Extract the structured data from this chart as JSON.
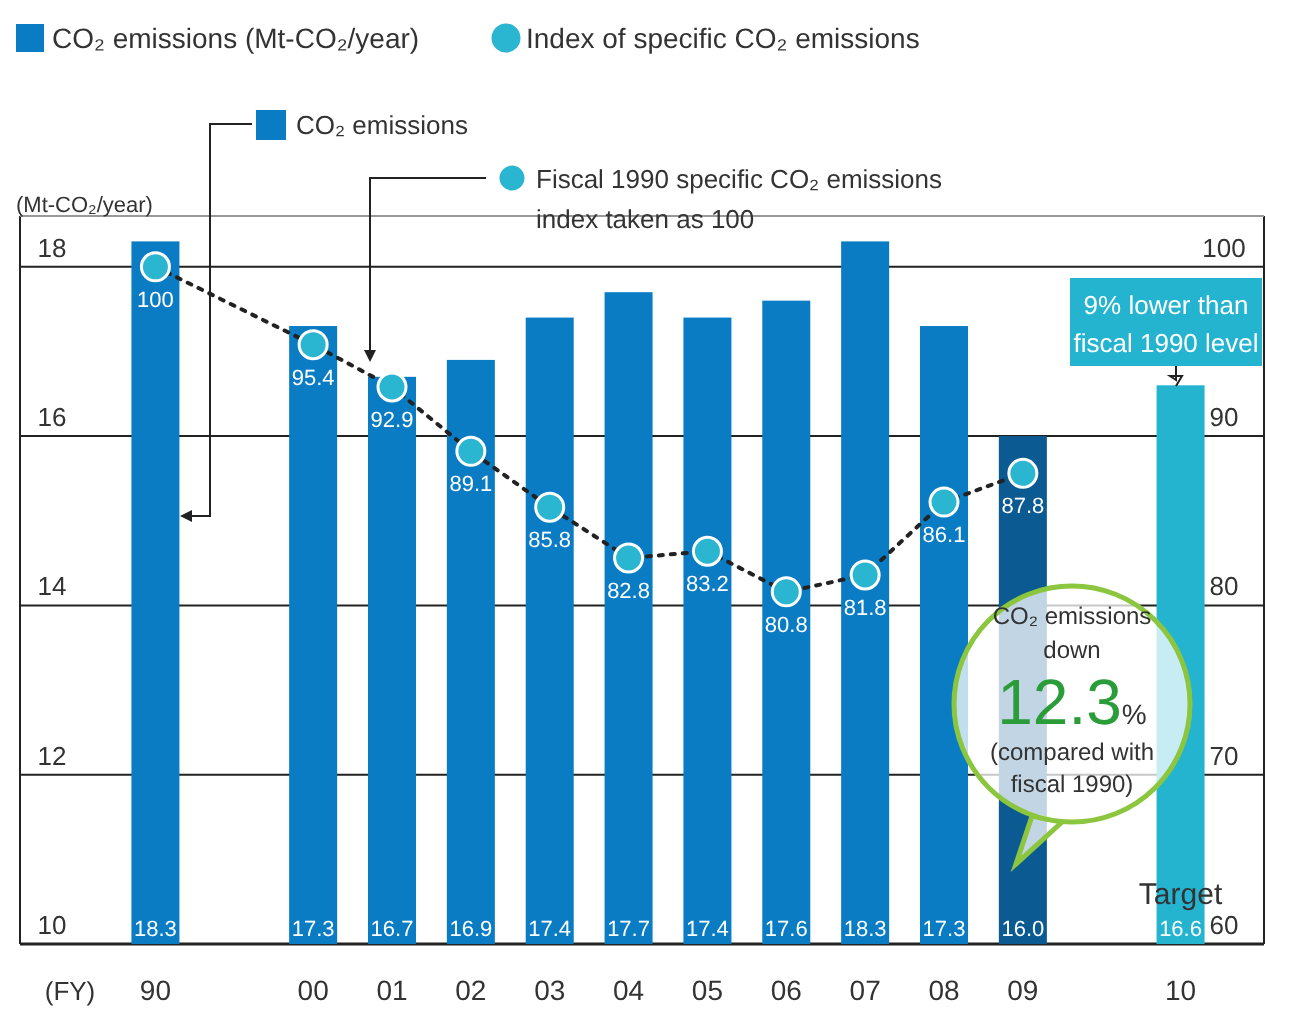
{
  "chart_data": {
    "type": "bar",
    "categories": [
      "90",
      null,
      "00",
      "01",
      "02",
      "03",
      "04",
      "05",
      "06",
      "07",
      "08",
      "09",
      null,
      "10"
    ],
    "series": [
      {
        "name": "CO₂ emissions (Mt-CO₂/year)",
        "color": "#0a7cc4",
        "value_labels": [
          "18.3",
          null,
          "17.3",
          "16.7",
          "16.9",
          "17.4",
          "17.7",
          "17.4",
          "17.6",
          "18.3",
          "17.3",
          "16.0",
          null,
          "16.6"
        ],
        "colors": [
          "#0a7cc4",
          null,
          "#0a7cc4",
          "#0a7cc4",
          "#0a7cc4",
          "#0a7cc4",
          "#0a7cc4",
          "#0a7cc4",
          "#0a7cc4",
          "#0a7cc4",
          "#0a7cc4",
          "#0b5a92",
          null,
          "#25b4d0"
        ],
        "values": [
          18.3,
          null,
          17.3,
          16.7,
          16.9,
          17.4,
          17.7,
          17.4,
          17.6,
          18.3,
          17.3,
          16.0,
          null,
          16.6
        ]
      },
      {
        "name": "Index of specific CO₂ emissions",
        "type": "line",
        "axis": "y2",
        "color": "#2ab5d0",
        "marker": "circle",
        "line_style": "dotted",
        "value_labels": [
          "100",
          null,
          "95.4",
          "92.9",
          "89.1",
          "85.8",
          "82.8",
          "83.2",
          "80.8",
          "81.8",
          "86.1",
          "87.8",
          null,
          null
        ],
        "values": [
          100,
          null,
          95.4,
          92.9,
          89.1,
          85.8,
          82.8,
          83.2,
          80.8,
          81.8,
          86.1,
          87.8,
          null,
          null
        ]
      }
    ],
    "ylabel": "(Mt-CO₂/year)",
    "ylim": [
      10,
      18.6
    ],
    "yticks": [
      10,
      12,
      14,
      16,
      18
    ],
    "y2lim": [
      60,
      103
    ],
    "y2ticks": [
      60,
      70,
      80,
      90,
      100
    ],
    "grid": "y",
    "legend": "top left",
    "annotations": [
      "CO₂ emissions",
      "Fiscal 1990 specific CO₂ emissions\nindex taken as 100",
      "9% lower than\nfiscal 1990 level",
      "CO₂ emissions\ndown\n12.3%\n(compared with\nfiscal 1990)",
      "Target",
      "(FY)"
    ]
  }
}
